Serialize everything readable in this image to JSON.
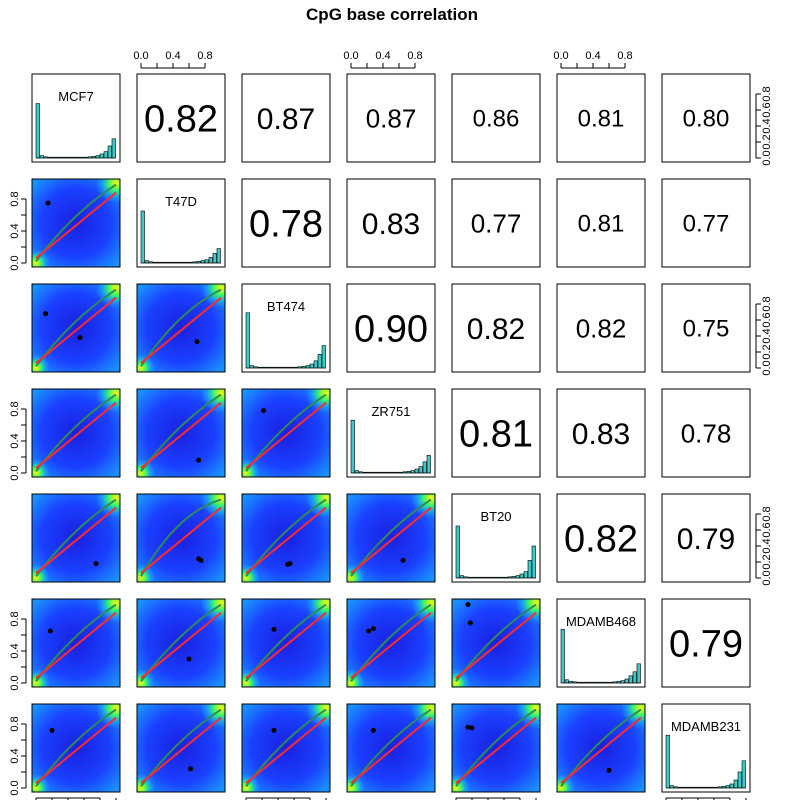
{
  "chart_data": {
    "type": "scatter-matrix",
    "title": "CpG base correlation",
    "variables": [
      "MCF7",
      "T47D",
      "BT474",
      "ZR751",
      "BT20",
      "MDAMB468",
      "MDAMB231"
    ],
    "axis_range": [
      0,
      1
    ],
    "tick_labels_bottom_top": [
      "0.0",
      "0.4",
      "0.8"
    ],
    "tick_labels_left_right": [
      "0.0",
      "0.2",
      "0.4",
      "0.6",
      "0.8"
    ],
    "tick_labels_left_lower": [
      "0.0",
      "0.4",
      "0.8"
    ],
    "correlations": [
      [
        null,
        0.82,
        0.87,
        0.87,
        0.86,
        0.81,
        0.8
      ],
      [
        null,
        null,
        0.78,
        0.83,
        0.77,
        0.81,
        0.77
      ],
      [
        null,
        null,
        null,
        0.9,
        0.82,
        0.82,
        0.75
      ],
      [
        null,
        null,
        null,
        null,
        0.81,
        0.83,
        0.78
      ],
      [
        null,
        null,
        null,
        null,
        null,
        0.82,
        0.79
      ],
      [
        null,
        null,
        null,
        null,
        null,
        null,
        0.79
      ],
      [
        null,
        null,
        null,
        null,
        null,
        null,
        null
      ]
    ],
    "correlation_labels": [
      [
        null,
        "0.82",
        "0.87",
        "0.87",
        "0.86",
        "0.81",
        "0.80"
      ],
      [
        null,
        null,
        "0.78",
        "0.83",
        "0.77",
        "0.81",
        "0.77"
      ],
      [
        null,
        null,
        null,
        "0.90",
        "0.82",
        "0.82",
        "0.75"
      ],
      [
        null,
        null,
        null,
        null,
        "0.81",
        "0.83",
        "0.78"
      ],
      [
        null,
        null,
        null,
        null,
        null,
        "0.82",
        "0.79"
      ],
      [
        null,
        null,
        null,
        null,
        null,
        null,
        "0.79"
      ],
      [
        null,
        null,
        null,
        null,
        null,
        null,
        null
      ]
    ],
    "histograms": {
      "bins": [
        0.025,
        0.075,
        0.125,
        0.175,
        0.225,
        0.275,
        0.325,
        0.375,
        0.425,
        0.475,
        0.525,
        0.575,
        0.625,
        0.675,
        0.725,
        0.775,
        0.825,
        0.875,
        0.925,
        0.975
      ],
      "heights": [
        [
          0.68,
          0.03,
          0.015,
          0.01,
          0.01,
          0.01,
          0.01,
          0.01,
          0.01,
          0.01,
          0.01,
          0.01,
          0.01,
          0.015,
          0.02,
          0.03,
          0.05,
          0.08,
          0.15,
          0.24
        ],
        [
          0.65,
          0.03,
          0.015,
          0.01,
          0.01,
          0.01,
          0.01,
          0.01,
          0.01,
          0.01,
          0.01,
          0.01,
          0.01,
          0.015,
          0.02,
          0.03,
          0.04,
          0.07,
          0.12,
          0.18
        ],
        [
          0.69,
          0.03,
          0.015,
          0.01,
          0.01,
          0.01,
          0.01,
          0.01,
          0.01,
          0.01,
          0.01,
          0.01,
          0.01,
          0.015,
          0.02,
          0.03,
          0.05,
          0.09,
          0.17,
          0.28
        ],
        [
          0.66,
          0.03,
          0.015,
          0.01,
          0.01,
          0.01,
          0.01,
          0.01,
          0.01,
          0.01,
          0.01,
          0.01,
          0.01,
          0.015,
          0.02,
          0.03,
          0.05,
          0.08,
          0.14,
          0.22
        ],
        [
          0.65,
          0.03,
          0.015,
          0.01,
          0.01,
          0.01,
          0.01,
          0.01,
          0.01,
          0.01,
          0.01,
          0.01,
          0.01,
          0.015,
          0.02,
          0.03,
          0.05,
          0.08,
          0.22,
          0.4
        ],
        [
          0.67,
          0.04,
          0.02,
          0.015,
          0.01,
          0.01,
          0.01,
          0.01,
          0.01,
          0.01,
          0.01,
          0.01,
          0.01,
          0.015,
          0.02,
          0.03,
          0.05,
          0.09,
          0.14,
          0.24
        ],
        [
          0.66,
          0.03,
          0.015,
          0.01,
          0.01,
          0.01,
          0.01,
          0.01,
          0.01,
          0.01,
          0.01,
          0.01,
          0.01,
          0.015,
          0.02,
          0.03,
          0.05,
          0.1,
          0.2,
          0.34
        ]
      ]
    },
    "scatter_points": {
      "1,0": [
        [
          0.15,
          0.75
        ]
      ],
      "2,0": [
        [
          0.12,
          0.68
        ],
        [
          0.55,
          0.38
        ]
      ],
      "2,1": [
        [
          0.7,
          0.33
        ]
      ],
      "3,0": [],
      "3,1": [
        [
          0.72,
          0.16
        ]
      ],
      "3,2": [
        [
          0.22,
          0.78
        ]
      ],
      "4,0": [
        [
          0.75,
          0.18
        ]
      ],
      "4,1": [
        [
          0.75,
          0.22
        ],
        [
          0.72,
          0.24
        ]
      ],
      "4,2": [
        [
          0.55,
          0.18
        ],
        [
          0.52,
          0.17
        ]
      ],
      "4,3": [
        [
          0.65,
          0.22
        ]
      ],
      "5,0": [
        [
          0.18,
          0.65
        ]
      ],
      "5,1": [
        [
          0.6,
          0.3
        ]
      ],
      "5,2": [
        [
          0.35,
          0.67
        ]
      ],
      "5,3": [
        [
          0.28,
          0.68
        ],
        [
          0.22,
          0.65
        ]
      ],
      "5,4": [
        [
          0.18,
          0.75
        ],
        [
          0.15,
          0.98
        ]
      ],
      "6,0": [
        [
          0.2,
          0.72
        ]
      ],
      "6,1": [
        [
          0.62,
          0.24
        ]
      ],
      "6,2": [
        [
          0.35,
          0.72
        ]
      ],
      "6,3": [
        [
          0.28,
          0.72
        ]
      ],
      "6,4": [
        [
          0.2,
          0.75
        ],
        [
          0.15,
          0.76
        ]
      ],
      "6,5": [
        [
          0.6,
          0.22
        ]
      ]
    },
    "colors": {
      "density_low": "#1a3cff",
      "density_mid": "#1aa6ff",
      "density_high": "#33ff66",
      "density_peak": "#ffff00",
      "fit_line": "#ff2a2a",
      "smooth_line": "#2e8b57",
      "histogram_fill": "#40c8c8",
      "points": "#000000"
    },
    "grid": false
  }
}
